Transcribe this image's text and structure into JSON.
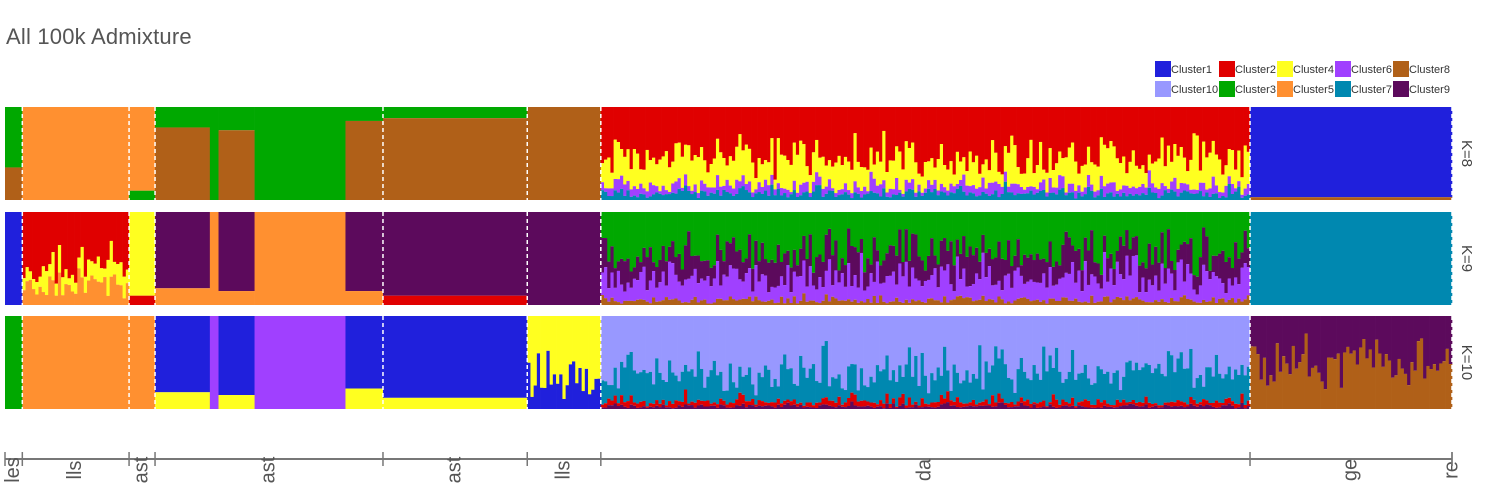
{
  "title": "All 100k Admixture",
  "chart_data": {
    "type": "bar",
    "stacked": true,
    "title": "All 100k Admixture",
    "legend": {
      "position": "top-right",
      "entries": [
        {
          "name": "Cluster1",
          "color": "#2020DC"
        },
        {
          "name": "Cluster2",
          "color": "#E00000"
        },
        {
          "name": "Cluster4",
          "color": "#FFFF20"
        },
        {
          "name": "Cluster6",
          "color": "#A040FF"
        },
        {
          "name": "Cluster8",
          "color": "#B06018"
        },
        {
          "name": "Cluster10",
          "color": "#9898FF"
        },
        {
          "name": "Cluster3",
          "color": "#00A800"
        },
        {
          "name": "Cluster5",
          "color": "#FF9030"
        },
        {
          "name": "Cluster7",
          "color": "#0088B0"
        },
        {
          "name": "Cluster9",
          "color": "#5C0A5C"
        }
      ]
    },
    "panels": [
      "K=8",
      "K=9",
      "K=10"
    ],
    "groups": [
      {
        "label": "les",
        "weight": 1.2
      },
      {
        "label": "lls",
        "weight": 7.4
      },
      {
        "label": "ast",
        "weight": 1.8
      },
      {
        "label": "ast",
        "weight": 15.8
      },
      {
        "label": "ast",
        "weight": 10.0
      },
      {
        "label": "lls",
        "weight": 5.1
      },
      {
        "label": "da",
        "weight": 45.0
      },
      {
        "label": "ge",
        "weight": 14.0
      },
      {
        "label": "re",
        "weight": 0.0
      }
    ],
    "segments": {
      "K=8": [
        {
          "w": 1.2,
          "mix": [
            [
              "Cluster3",
              0.65
            ],
            [
              "Cluster8",
              0.35
            ]
          ]
        },
        {
          "w": 7.4,
          "mix": [
            [
              "Cluster5",
              1.0
            ]
          ]
        },
        {
          "w": 1.8,
          "mix": [
            [
              "Cluster5",
              0.9
            ],
            [
              "Cluster3",
              0.1
            ]
          ]
        },
        {
          "w": 3.8,
          "mix": [
            [
              "Cluster3",
              0.22
            ],
            [
              "Cluster8",
              0.78
            ]
          ]
        },
        {
          "w": 0.6,
          "mix": [
            [
              "Cluster3",
              1.0
            ]
          ]
        },
        {
          "w": 2.5,
          "mix": [
            [
              "Cluster3",
              0.25
            ],
            [
              "Cluster8",
              0.75
            ]
          ]
        },
        {
          "w": 6.3,
          "mix": [
            [
              "Cluster3",
              1.0
            ]
          ]
        },
        {
          "w": 2.6,
          "mix": [
            [
              "Cluster3",
              0.15
            ],
            [
              "Cluster8",
              0.85
            ]
          ]
        },
        {
          "w": 10.0,
          "mix": [
            [
              "Cluster3",
              0.12
            ],
            [
              "Cluster8",
              0.88
            ]
          ]
        },
        {
          "w": 5.1,
          "mix": [
            [
              "Cluster8",
              1.0
            ]
          ]
        },
        {
          "w": 45.0,
          "mix": [
            [
              "Cluster2",
              0.55
            ],
            [
              "Cluster4",
              0.3
            ],
            [
              "Cluster6",
              0.08
            ],
            [
              "Cluster7",
              0.07
            ]
          ],
          "striped": true
        },
        {
          "w": 14.0,
          "mix": [
            [
              "Cluster1",
              0.97
            ],
            [
              "Cluster8",
              0.03
            ]
          ]
        }
      ],
      "K=9": [
        {
          "w": 1.2,
          "mix": [
            [
              "Cluster1",
              1.0
            ]
          ]
        },
        {
          "w": 7.4,
          "mix": [
            [
              "Cluster2",
              0.6
            ],
            [
              "Cluster4",
              0.2
            ],
            [
              "Cluster5",
              0.2
            ]
          ],
          "striped": true
        },
        {
          "w": 1.8,
          "mix": [
            [
              "Cluster4",
              0.9
            ],
            [
              "Cluster2",
              0.1
            ]
          ]
        },
        {
          "w": 3.8,
          "mix": [
            [
              "Cluster9",
              0.82
            ],
            [
              "Cluster5",
              0.18
            ]
          ]
        },
        {
          "w": 0.6,
          "mix": [
            [
              "Cluster5",
              1.0
            ]
          ]
        },
        {
          "w": 2.5,
          "mix": [
            [
              "Cluster9",
              0.85
            ],
            [
              "Cluster5",
              0.15
            ]
          ]
        },
        {
          "w": 6.3,
          "mix": [
            [
              "Cluster5",
              1.0
            ]
          ]
        },
        {
          "w": 2.6,
          "mix": [
            [
              "Cluster9",
              0.85
            ],
            [
              "Cluster5",
              0.15
            ]
          ]
        },
        {
          "w": 10.0,
          "mix": [
            [
              "Cluster9",
              0.9
            ],
            [
              "Cluster2",
              0.1
            ]
          ]
        },
        {
          "w": 5.1,
          "mix": [
            [
              "Cluster9",
              1.0
            ]
          ]
        },
        {
          "w": 45.0,
          "mix": [
            [
              "Cluster3",
              0.45
            ],
            [
              "Cluster9",
              0.25
            ],
            [
              "Cluster6",
              0.25
            ],
            [
              "Cluster8",
              0.05
            ]
          ],
          "striped": true
        },
        {
          "w": 14.0,
          "mix": [
            [
              "Cluster7",
              1.0
            ]
          ]
        }
      ],
      "K=10": [
        {
          "w": 1.2,
          "mix": [
            [
              "Cluster3",
              1.0
            ]
          ]
        },
        {
          "w": 7.4,
          "mix": [
            [
              "Cluster5",
              1.0
            ]
          ]
        },
        {
          "w": 1.8,
          "mix": [
            [
              "Cluster5",
              1.0
            ]
          ]
        },
        {
          "w": 3.8,
          "mix": [
            [
              "Cluster1",
              0.82
            ],
            [
              "Cluster4",
              0.18
            ]
          ]
        },
        {
          "w": 0.6,
          "mix": [
            [
              "Cluster6",
              1.0
            ]
          ]
        },
        {
          "w": 2.5,
          "mix": [
            [
              "Cluster1",
              0.85
            ],
            [
              "Cluster4",
              0.15
            ]
          ]
        },
        {
          "w": 6.3,
          "mix": [
            [
              "Cluster6",
              1.0
            ]
          ]
        },
        {
          "w": 2.6,
          "mix": [
            [
              "Cluster1",
              0.78
            ],
            [
              "Cluster4",
              0.22
            ]
          ]
        },
        {
          "w": 10.0,
          "mix": [
            [
              "Cluster1",
              0.88
            ],
            [
              "Cluster4",
              0.12
            ]
          ]
        },
        {
          "w": 5.1,
          "mix": [
            [
              "Cluster4",
              0.7
            ],
            [
              "Cluster1",
              0.3
            ]
          ],
          "striped": true
        },
        {
          "w": 45.0,
          "mix": [
            [
              "Cluster10",
              0.6
            ],
            [
              "Cluster7",
              0.32
            ],
            [
              "Cluster2",
              0.05
            ],
            [
              "Cluster9",
              0.03
            ]
          ],
          "striped": true
        },
        {
          "w": 14.0,
          "mix": [
            [
              "Cluster9",
              0.5
            ],
            [
              "Cluster8",
              0.5
            ]
          ],
          "striped": true
        }
      ]
    }
  }
}
